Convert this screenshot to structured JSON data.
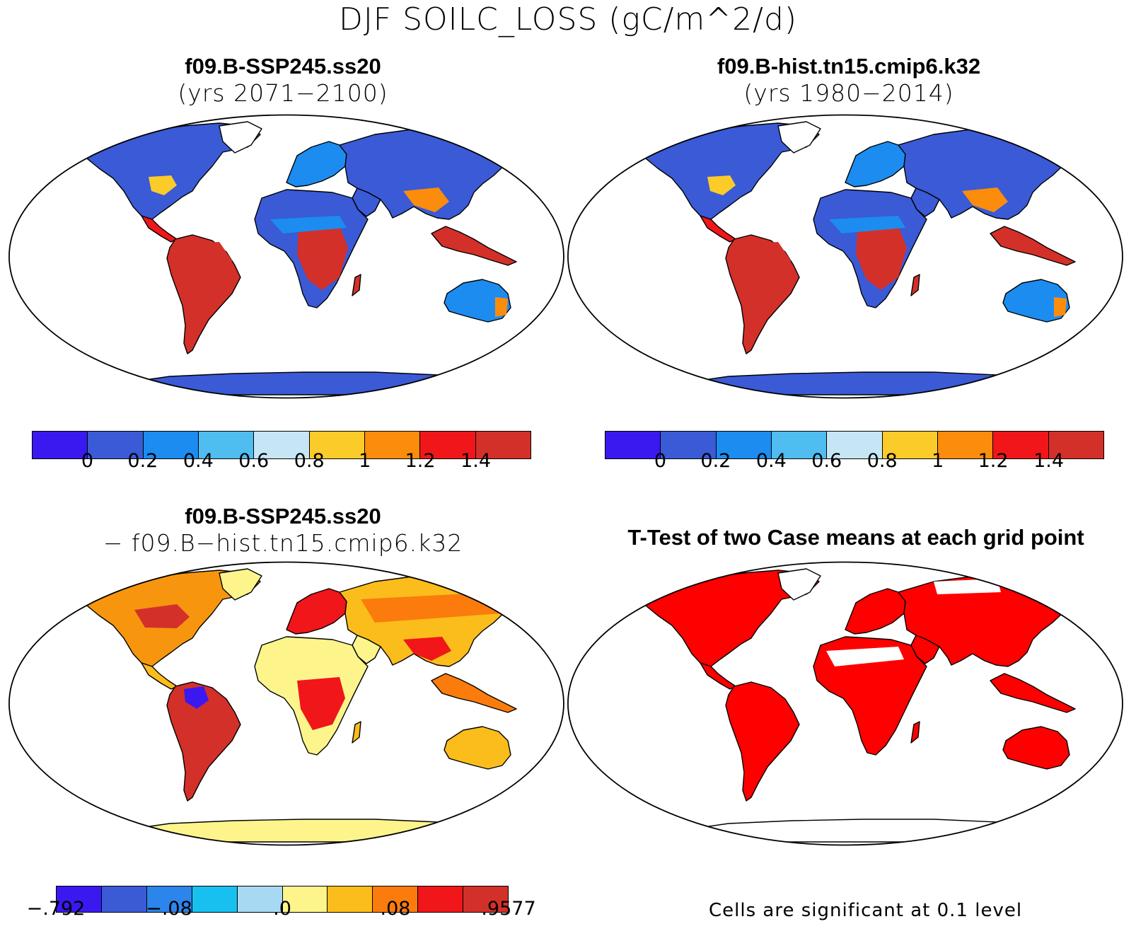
{
  "title": "DJF SOILC_LOSS (gC/m^2/d)",
  "panels": {
    "top_left": {
      "title": "f09.B-SSP245.ss20",
      "subtitle": "(yrs 2071−2100)"
    },
    "top_right": {
      "title": "f09.B-hist.tn15.cmip6.k32",
      "subtitle": "(yrs 1980−2014)"
    },
    "bottom_left": {
      "title": "f09.B-SSP245.ss20",
      "subtitle": "− f09.B−hist.tn15.cmip6.k32"
    },
    "bottom_right": {
      "title": "T-Test of two Case means at each grid point"
    }
  },
  "colorbar_abs": {
    "colors": [
      "#3a19f0",
      "#3a5ad6",
      "#1c8cf0",
      "#4fbdf0",
      "#c6e6f6",
      "#fbcb2a",
      "#fb8c0c",
      "#f0161a",
      "#d3302a"
    ],
    "ticks": [
      "0",
      "0.2",
      "0.4",
      "0.6",
      "0.8",
      "1",
      "1.2",
      "1.4"
    ]
  },
  "colorbar_diff": {
    "colors": [
      "#3a19f0",
      "#3a5ad6",
      "#2c85ea",
      "#18c0f0",
      "#a8d9f2",
      "#fdf58c",
      "#fbbd1c",
      "#fb7c0c",
      "#f0161a",
      "#d3302a"
    ],
    "ticks": [
      "−.792",
      "−.08",
      ".0",
      ".08",
      ".9577"
    ]
  },
  "significance_note": "Cells are significant at 0.1 level",
  "colors": {
    "ttest_significant": "#ff0000",
    "coastline": "#000000"
  }
}
